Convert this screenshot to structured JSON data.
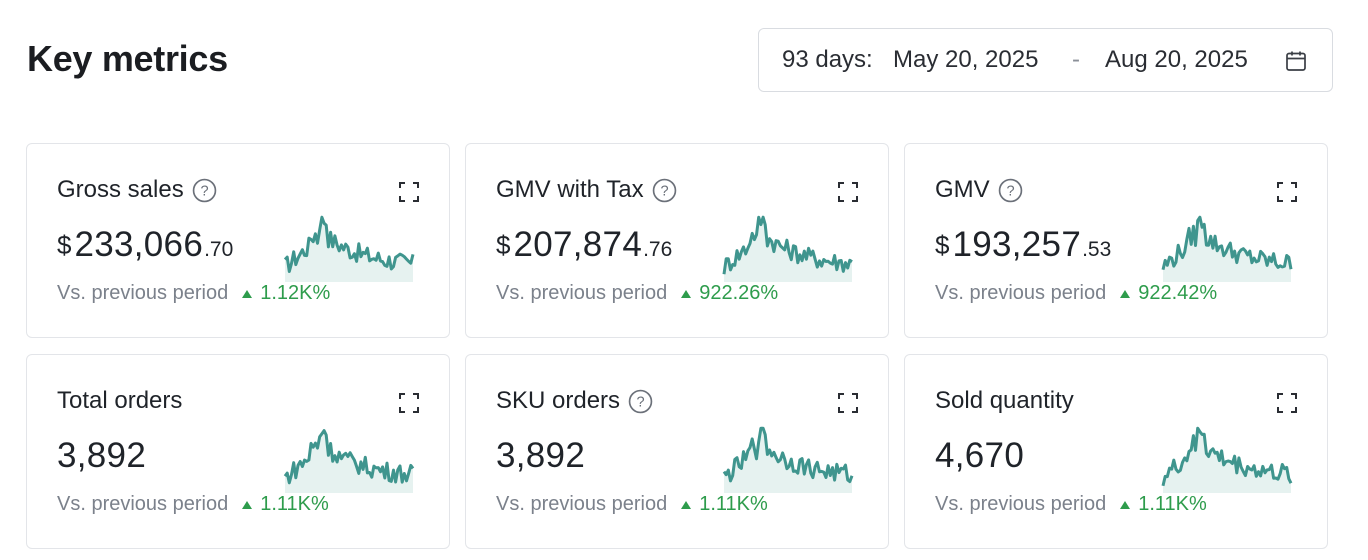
{
  "header": {
    "title": "Key metrics",
    "date_range": {
      "days": "93 days:",
      "start": "May 20, 2025",
      "separator": "-",
      "end": "Aug 20, 2025",
      "icon": "calendar-icon"
    }
  },
  "colors": {
    "sparkline": "#3f958e",
    "sparkline_fill": "#e6f2f0",
    "positive": "#2e9c4c",
    "muted": "#7b818b"
  },
  "cards": [
    {
      "title": "Gross sales",
      "has_help": true,
      "currency": "$",
      "value_int": "233,066",
      "value_dec": ".70",
      "compare_label": "Vs. previous period",
      "delta": "1.12K%",
      "icons": [
        "help-icon",
        "expand-icon"
      ]
    },
    {
      "title": "GMV with Tax",
      "has_help": true,
      "currency": "$",
      "value_int": "207,874",
      "value_dec": ".76",
      "compare_label": "Vs. previous period",
      "delta": "922.26%",
      "icons": [
        "help-icon",
        "expand-icon"
      ]
    },
    {
      "title": "GMV",
      "has_help": true,
      "currency": "$",
      "value_int": "193,257",
      "value_dec": ".53",
      "compare_label": "Vs. previous period",
      "delta": "922.42%",
      "icons": [
        "help-icon",
        "expand-icon"
      ]
    },
    {
      "title": "Total orders",
      "has_help": false,
      "value": "3,892",
      "compare_label": "Vs. previous period",
      "delta": "1.11K%",
      "icons": [
        "expand-icon"
      ]
    },
    {
      "title": "SKU orders",
      "has_help": true,
      "value": "3,892",
      "compare_label": "Vs. previous period",
      "delta": "1.11K%",
      "icons": [
        "help-icon",
        "expand-icon"
      ]
    },
    {
      "title": "Sold quantity",
      "has_help": false,
      "value": "4,670",
      "compare_label": "Vs. previous period",
      "delta": "1.11K%",
      "icons": [
        "expand-icon"
      ]
    }
  ]
}
